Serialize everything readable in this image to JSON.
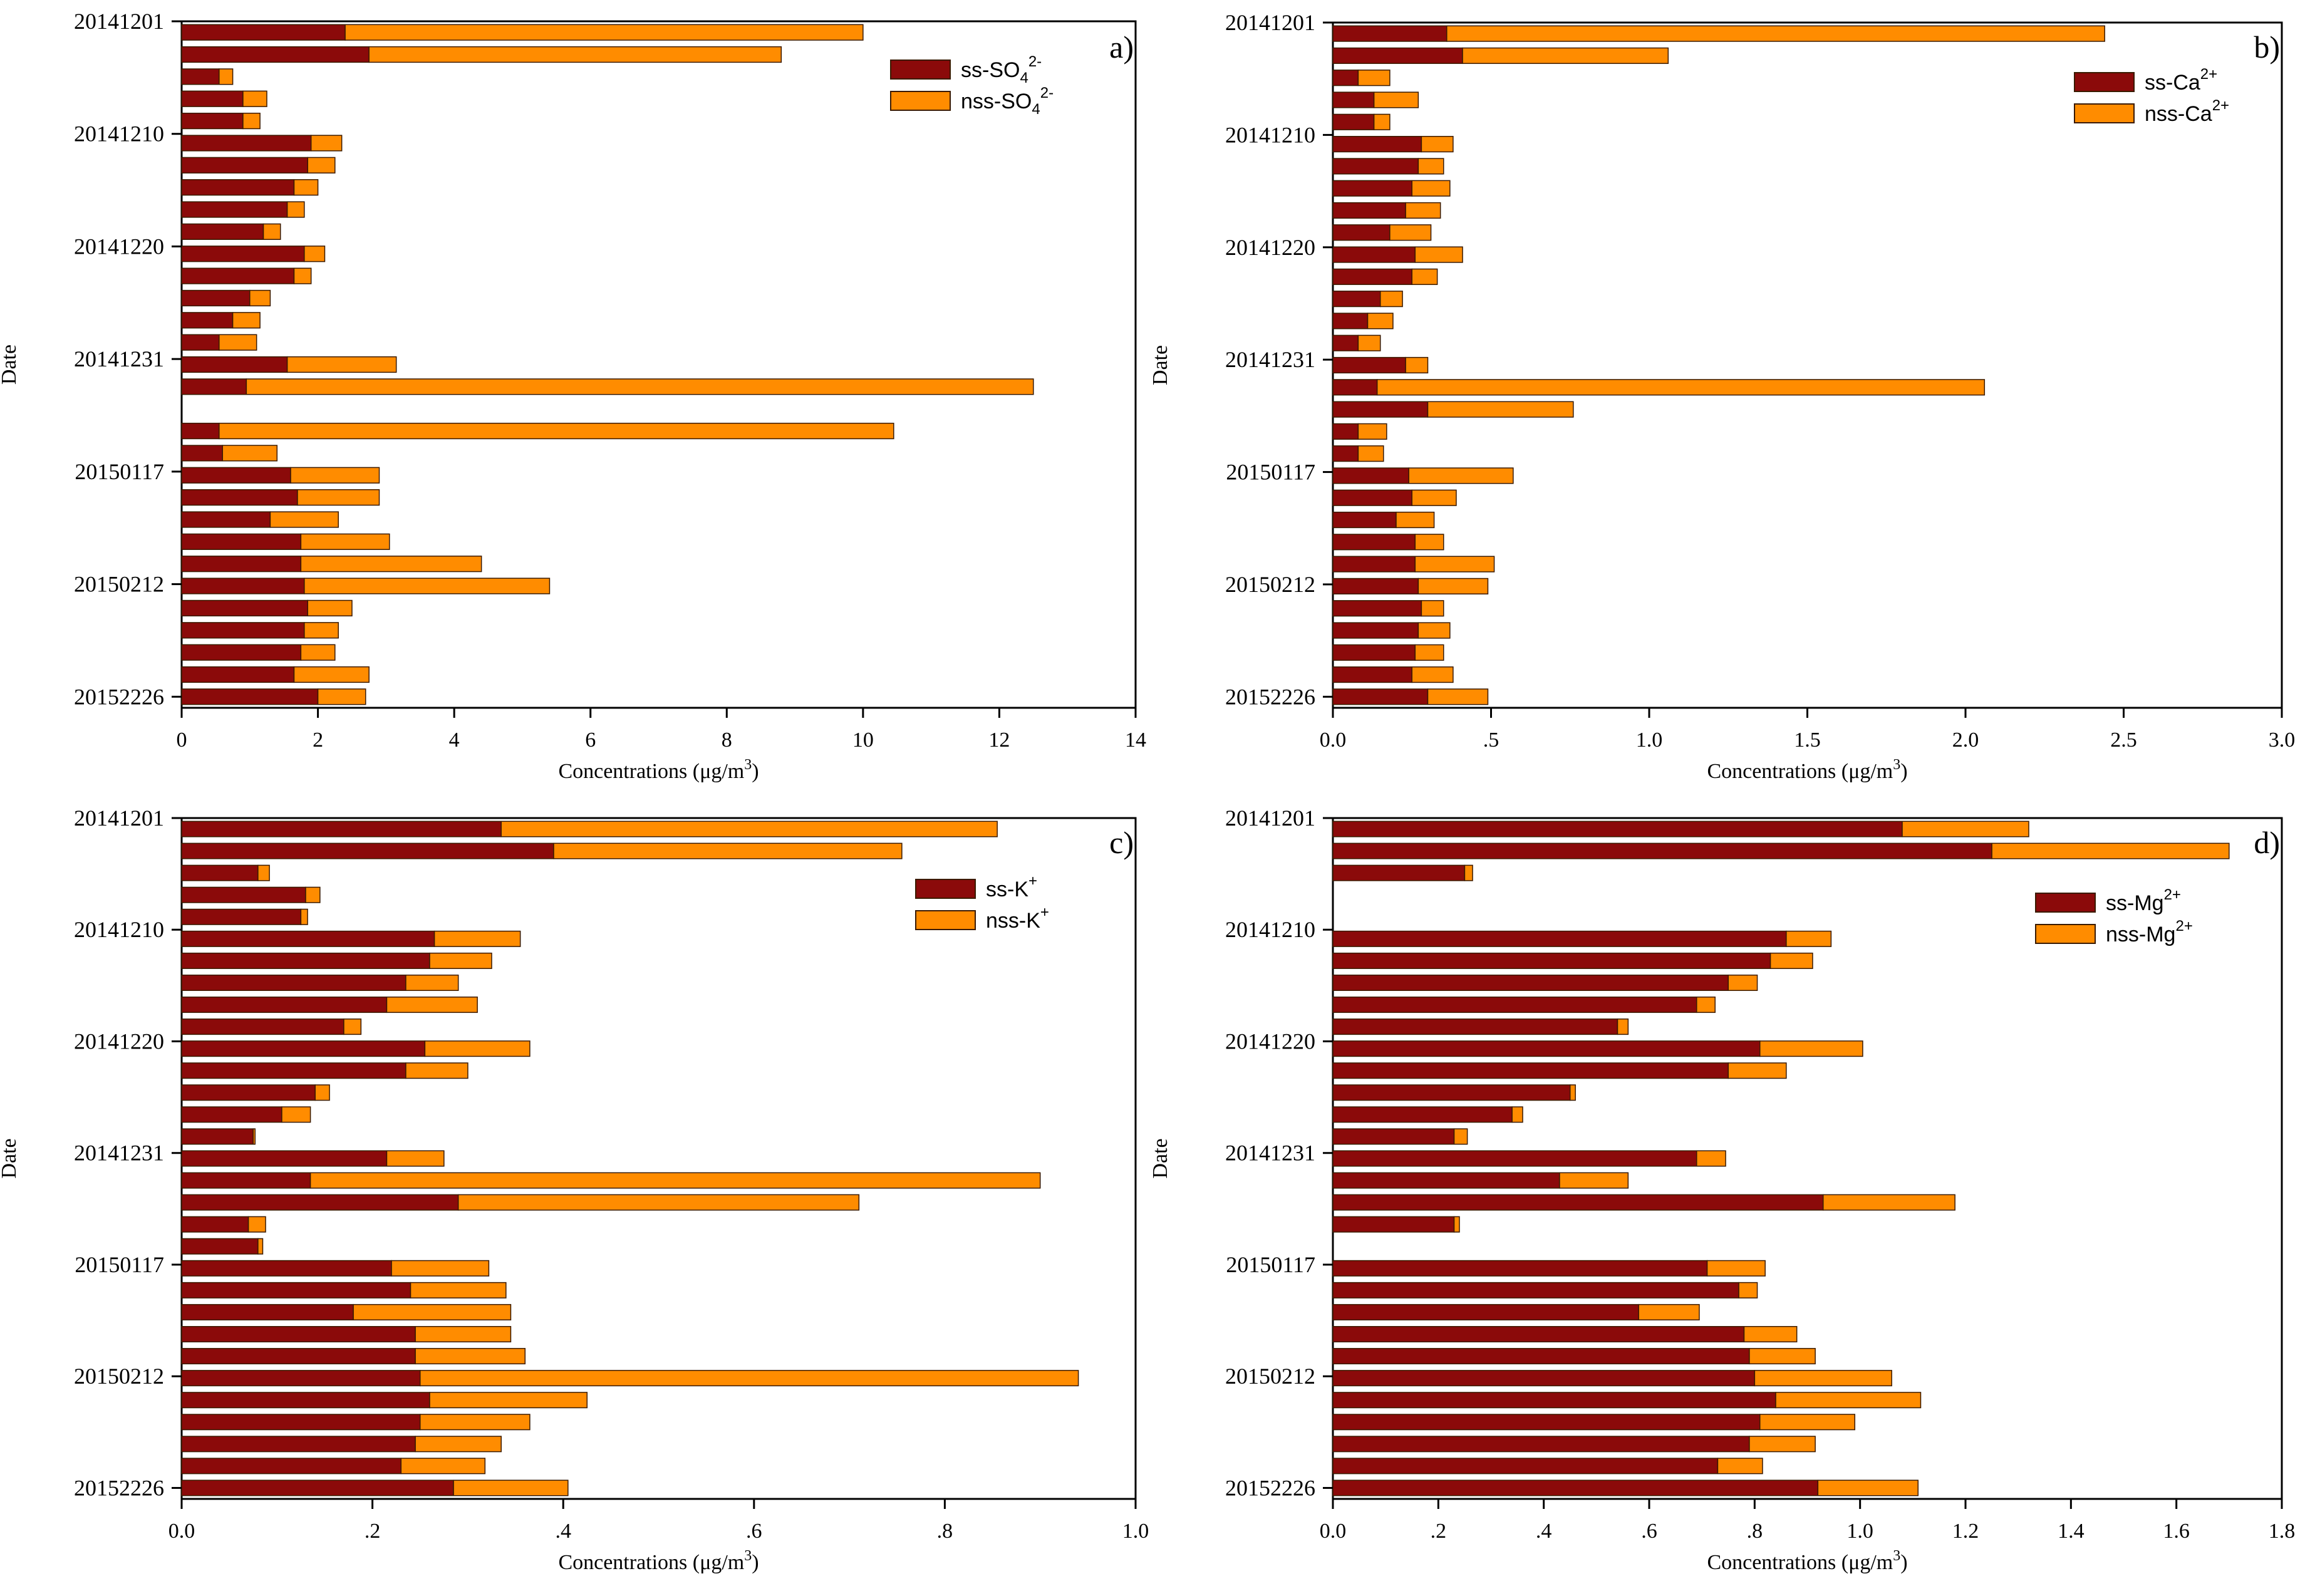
{
  "colors": {
    "ss": "#8B0A0A",
    "nss": "#FF8C00",
    "axis": "#000000",
    "bar_stroke": "#3a1a00"
  },
  "chart_data": [
    {
      "type": "bar",
      "orientation": "horizontal",
      "stacked": true,
      "panel_label": "a)",
      "ylabel": "Date",
      "xlabel": "Concentrations (μg/m3)",
      "xlabel_main": "Concentrations (μg/m",
      "xlabel_sup": "3",
      "xlabel_end": ")",
      "xlim": [
        0,
        14
      ],
      "x_ticks": [
        0,
        2,
        4,
        6,
        8,
        10,
        12,
        14
      ],
      "x_tick_labels": [
        "0",
        "2",
        "4",
        "6",
        "8",
        "10",
        "12",
        "14"
      ],
      "date_labels": [
        "20141201",
        "20141210",
        "20141220",
        "20141231",
        "20150117",
        "20150212",
        "20152226"
      ],
      "legend_position": "top-right",
      "legend": [
        {
          "base": "ss-SO",
          "sub": "4",
          "sup": "2-"
        },
        {
          "base": "nss-SO",
          "sub": "4",
          "sup": "2-"
        }
      ],
      "series": [
        {
          "name": "ss-SO42-",
          "values": [
            2.4,
            2.75,
            0.55,
            0.9,
            0.9,
            1.9,
            1.85,
            1.65,
            1.55,
            1.2,
            1.8,
            1.65,
            1.0,
            0.75,
            0.55,
            1.55,
            0.95,
            null,
            0.55,
            0.6,
            1.6,
            1.7,
            1.3,
            1.75,
            1.75,
            1.8,
            1.85,
            1.8,
            1.75,
            1.65,
            2.0
          ]
        },
        {
          "name": "nss-SO42-",
          "values": [
            7.6,
            6.05,
            0.2,
            0.35,
            0.25,
            0.45,
            0.4,
            0.35,
            0.25,
            0.25,
            0.3,
            0.25,
            0.3,
            0.4,
            0.55,
            1.6,
            11.55,
            null,
            9.9,
            0.8,
            1.3,
            1.2,
            1.0,
            1.3,
            2.65,
            3.6,
            0.65,
            0.5,
            0.5,
            1.1,
            0.7
          ]
        }
      ]
    },
    {
      "type": "bar",
      "orientation": "horizontal",
      "stacked": true,
      "panel_label": "b)",
      "ylabel": "Date",
      "xlabel": "Concentrations (μg/m3)",
      "xlabel_main": "Concentrations (μg/m",
      "xlabel_sup": "3",
      "xlabel_end": ")",
      "xlim": [
        0,
        3
      ],
      "x_ticks": [
        0,
        0.5,
        1,
        1.5,
        2,
        2.5,
        3
      ],
      "x_tick_labels": [
        "0.0",
        ".5",
        "1.0",
        "1.5",
        "2.0",
        "2.5",
        "3.0"
      ],
      "date_labels": [
        "20141201",
        "20141210",
        "20141220",
        "20141231",
        "20150117",
        "20150212",
        "20152226"
      ],
      "legend_position": "top-right",
      "legend": [
        {
          "base": "ss-Ca",
          "sub": "",
          "sup": "2+"
        },
        {
          "base": "nss-Ca",
          "sub": "",
          "sup": "2+"
        }
      ],
      "series": [
        {
          "name": "ss-Ca2+",
          "values": [
            0.36,
            0.41,
            0.08,
            0.13,
            0.13,
            0.28,
            0.27,
            0.25,
            0.23,
            0.18,
            0.26,
            0.25,
            0.15,
            0.11,
            0.08,
            0.23,
            0.14,
            0.3,
            0.08,
            0.08,
            0.24,
            0.25,
            0.2,
            0.26,
            0.26,
            0.27,
            0.28,
            0.27,
            0.26,
            0.25,
            0.3
          ]
        },
        {
          "name": "nss-Ca2+",
          "values": [
            2.08,
            0.65,
            0.1,
            0.14,
            0.05,
            0.1,
            0.08,
            0.12,
            0.11,
            0.13,
            0.15,
            0.08,
            0.07,
            0.08,
            0.07,
            0.07,
            1.92,
            0.46,
            0.09,
            0.08,
            0.33,
            0.14,
            0.12,
            0.09,
            0.25,
            0.22,
            0.07,
            0.1,
            0.09,
            0.13,
            0.19
          ]
        }
      ]
    },
    {
      "type": "bar",
      "orientation": "horizontal",
      "stacked": true,
      "panel_label": "c)",
      "ylabel": "Date",
      "xlabel": "Concentrations (μg/m3)",
      "xlabel_main": "Concentrations (μg/m",
      "xlabel_sup": "3",
      "xlabel_end": ")",
      "xlim": [
        0,
        1
      ],
      "x_ticks": [
        0,
        0.2,
        0.4,
        0.6,
        0.8,
        1
      ],
      "x_tick_labels": [
        "0.0",
        ".2",
        ".4",
        ".6",
        ".8",
        "1.0"
      ],
      "date_labels": [
        "20141201",
        "20141210",
        "20141220",
        "20141231",
        "20150117",
        "20150212",
        "20152226"
      ],
      "legend_position": "top-right",
      "legend": [
        {
          "base": "ss-K",
          "sub": "",
          "sup": "+"
        },
        {
          "base": "nss-K",
          "sub": "",
          "sup": "+"
        }
      ],
      "series": [
        {
          "name": "ss-K+",
          "values": [
            0.335,
            0.39,
            0.08,
            0.13,
            0.125,
            0.265,
            0.26,
            0.235,
            0.215,
            0.17,
            0.255,
            0.235,
            0.14,
            0.105,
            0.075,
            0.215,
            0.135,
            0.29,
            0.07,
            0.08,
            0.22,
            0.24,
            0.18,
            0.245,
            0.245,
            0.25,
            0.26,
            0.25,
            0.245,
            0.23,
            0.285
          ]
        },
        {
          "name": "nss-K+",
          "values": [
            0.52,
            0.365,
            0.012,
            0.015,
            0.007,
            0.09,
            0.065,
            0.055,
            0.095,
            0.018,
            0.11,
            0.065,
            0.015,
            0.03,
            0.002,
            0.06,
            0.765,
            0.42,
            0.018,
            0.005,
            0.102,
            0.1,
            0.165,
            0.1,
            0.115,
            0.69,
            0.165,
            0.115,
            0.09,
            0.088,
            0.12
          ]
        }
      ]
    },
    {
      "type": "bar",
      "orientation": "horizontal",
      "stacked": true,
      "panel_label": "d)",
      "ylabel": "Date",
      "xlabel": "Concentrations (μg/m3)",
      "xlabel_main": "Concentrations (μg/m",
      "xlabel_sup": "3",
      "xlabel_end": ")",
      "xlim": [
        0,
        1.8
      ],
      "x_ticks": [
        0,
        0.2,
        0.4,
        0.6,
        0.8,
        1,
        1.2,
        1.4,
        1.6,
        1.8
      ],
      "x_tick_labels": [
        "0.0",
        ".2",
        ".4",
        ".6",
        ".8",
        "1.0",
        "1.2",
        "1.4",
        "1.6",
        "1.8"
      ],
      "date_labels": [
        "20141201",
        "20141210",
        "20141220",
        "20141231",
        "20150117",
        "20150212",
        "20152226"
      ],
      "legend_position": "top-right",
      "legend": [
        {
          "base": "ss-Mg",
          "sub": "",
          "sup": "2+"
        },
        {
          "base": "nss-Mg",
          "sub": "",
          "sup": "2+"
        }
      ],
      "series": [
        {
          "name": "ss-Mg2+",
          "values": [
            1.08,
            1.25,
            0.25,
            null,
            null,
            0.86,
            0.83,
            0.75,
            0.69,
            0.54,
            0.81,
            0.75,
            0.45,
            0.34,
            0.23,
            0.69,
            0.43,
            0.93,
            0.23,
            null,
            0.71,
            0.77,
            0.58,
            0.78,
            0.79,
            0.8,
            0.84,
            0.81,
            0.79,
            0.73,
            0.92
          ]
        },
        {
          "name": "nss-Mg2+",
          "values": [
            0.24,
            0.45,
            0.015,
            null,
            null,
            0.085,
            0.08,
            0.055,
            0.035,
            0.02,
            0.195,
            0.11,
            0.01,
            0.02,
            0.025,
            0.055,
            0.13,
            0.25,
            0.01,
            null,
            0.11,
            0.035,
            0.115,
            0.1,
            0.125,
            0.26,
            0.275,
            0.18,
            0.125,
            0.085,
            0.19
          ]
        }
      ]
    }
  ]
}
